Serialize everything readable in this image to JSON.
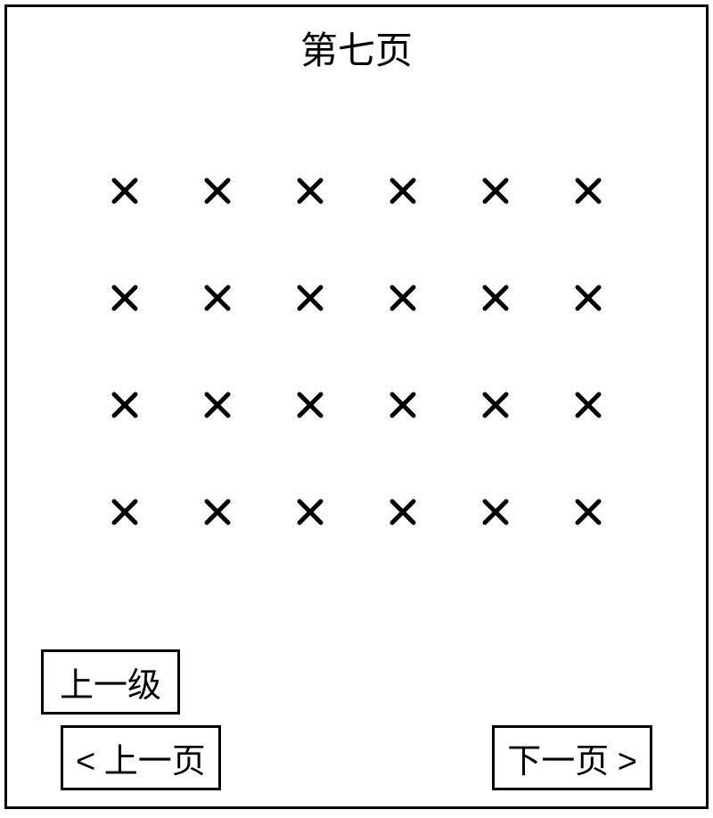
{
  "title": "第七页",
  "grid": {
    "rows": 4,
    "cols": 6,
    "icon_color": "#000000",
    "icon_stroke_width": 5
  },
  "buttons": {
    "up_level": "上一级",
    "prev_page": "上一页",
    "next_page": "下一页",
    "prev_chevron": "<",
    "next_chevron": ">"
  },
  "colors": {
    "border": "#000000",
    "background": "#ffffff",
    "text": "#000000"
  }
}
